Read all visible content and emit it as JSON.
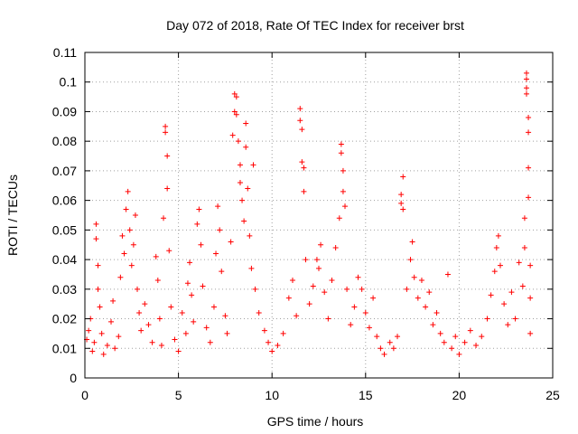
{
  "chart_data": {
    "type": "scatter",
    "title": "Day 072 of 2018, Rate Of TEC Index for receiver brst",
    "xlabel": "GPS time / hours",
    "ylabel": "ROTI / TECUs",
    "xlim": [
      0,
      25
    ],
    "ylim": [
      0,
      0.11
    ],
    "x_ticks": [
      "0",
      "5",
      "10",
      "15",
      "20",
      "25"
    ],
    "y_ticks": [
      "0",
      "0.01",
      "0.02",
      "0.03",
      "0.04",
      "0.05",
      "0.06",
      "0.07",
      "0.08",
      "0.09",
      "0.1",
      "0.11"
    ],
    "grid": true,
    "marker": "plus",
    "color": "#ff0000",
    "series": [
      {
        "points": [
          [
            0.1,
            0.013
          ],
          [
            0.2,
            0.016
          ],
          [
            0.3,
            0.02
          ],
          [
            0.4,
            0.009
          ],
          [
            0.5,
            0.012
          ],
          [
            0.6,
            0.047
          ],
          [
            0.6,
            0.052
          ],
          [
            0.7,
            0.038
          ],
          [
            0.7,
            0.03
          ],
          [
            0.8,
            0.024
          ],
          [
            0.9,
            0.015
          ],
          [
            1.0,
            0.008
          ],
          [
            1.2,
            0.011
          ],
          [
            1.4,
            0.019
          ],
          [
            1.5,
            0.026
          ],
          [
            1.6,
            0.01
          ],
          [
            1.8,
            0.014
          ],
          [
            1.9,
            0.034
          ],
          [
            2.0,
            0.048
          ],
          [
            2.1,
            0.042
          ],
          [
            2.2,
            0.057
          ],
          [
            2.3,
            0.063
          ],
          [
            2.4,
            0.05
          ],
          [
            2.5,
            0.038
          ],
          [
            2.6,
            0.045
          ],
          [
            2.7,
            0.055
          ],
          [
            2.8,
            0.03
          ],
          [
            2.9,
            0.022
          ],
          [
            3.0,
            0.016
          ],
          [
            3.2,
            0.025
          ],
          [
            3.4,
            0.018
          ],
          [
            3.6,
            0.012
          ],
          [
            3.8,
            0.041
          ],
          [
            3.9,
            0.033
          ],
          [
            4.0,
            0.02
          ],
          [
            4.1,
            0.011
          ],
          [
            4.2,
            0.054
          ],
          [
            4.3,
            0.085
          ],
          [
            4.3,
            0.083
          ],
          [
            4.4,
            0.075
          ],
          [
            4.4,
            0.064
          ],
          [
            4.5,
            0.043
          ],
          [
            4.6,
            0.024
          ],
          [
            4.8,
            0.013
          ],
          [
            5.0,
            0.009
          ],
          [
            5.2,
            0.022
          ],
          [
            5.4,
            0.015
          ],
          [
            5.5,
            0.032
          ],
          [
            5.6,
            0.039
          ],
          [
            5.7,
            0.028
          ],
          [
            5.8,
            0.019
          ],
          [
            6.0,
            0.052
          ],
          [
            6.1,
            0.057
          ],
          [
            6.2,
            0.045
          ],
          [
            6.3,
            0.031
          ],
          [
            6.5,
            0.017
          ],
          [
            6.7,
            0.012
          ],
          [
            6.9,
            0.024
          ],
          [
            7.0,
            0.042
          ],
          [
            7.1,
            0.058
          ],
          [
            7.2,
            0.05
          ],
          [
            7.3,
            0.036
          ],
          [
            7.5,
            0.021
          ],
          [
            7.6,
            0.015
          ],
          [
            7.8,
            0.046
          ],
          [
            7.9,
            0.082
          ],
          [
            8.0,
            0.09
          ],
          [
            8.0,
            0.096
          ],
          [
            8.1,
            0.095
          ],
          [
            8.1,
            0.089
          ],
          [
            8.2,
            0.08
          ],
          [
            8.3,
            0.072
          ],
          [
            8.3,
            0.066
          ],
          [
            8.4,
            0.06
          ],
          [
            8.5,
            0.053
          ],
          [
            8.6,
            0.086
          ],
          [
            8.6,
            0.078
          ],
          [
            8.7,
            0.064
          ],
          [
            8.8,
            0.048
          ],
          [
            8.9,
            0.037
          ],
          [
            9.0,
            0.072
          ],
          [
            9.1,
            0.03
          ],
          [
            9.3,
            0.022
          ],
          [
            9.6,
            0.016
          ],
          [
            9.8,
            0.012
          ],
          [
            10.0,
            0.009
          ],
          [
            10.3,
            0.011
          ],
          [
            10.6,
            0.015
          ],
          [
            10.9,
            0.027
          ],
          [
            11.1,
            0.033
          ],
          [
            11.3,
            0.021
          ],
          [
            11.5,
            0.091
          ],
          [
            11.5,
            0.087
          ],
          [
            11.6,
            0.084
          ],
          [
            11.6,
            0.073
          ],
          [
            11.7,
            0.071
          ],
          [
            11.7,
            0.063
          ],
          [
            11.8,
            0.04
          ],
          [
            12.0,
            0.025
          ],
          [
            12.2,
            0.031
          ],
          [
            12.4,
            0.04
          ],
          [
            12.5,
            0.037
          ],
          [
            12.6,
            0.045
          ],
          [
            12.8,
            0.029
          ],
          [
            13.0,
            0.02
          ],
          [
            13.2,
            0.033
          ],
          [
            13.4,
            0.044
          ],
          [
            13.6,
            0.054
          ],
          [
            13.7,
            0.079
          ],
          [
            13.7,
            0.076
          ],
          [
            13.8,
            0.07
          ],
          [
            13.8,
            0.063
          ],
          [
            13.9,
            0.058
          ],
          [
            14.0,
            0.03
          ],
          [
            14.2,
            0.018
          ],
          [
            14.4,
            0.024
          ],
          [
            14.6,
            0.034
          ],
          [
            14.8,
            0.03
          ],
          [
            15.0,
            0.022
          ],
          [
            15.2,
            0.017
          ],
          [
            15.4,
            0.027
          ],
          [
            15.6,
            0.014
          ],
          [
            15.8,
            0.01
          ],
          [
            16.0,
            0.008
          ],
          [
            16.3,
            0.012
          ],
          [
            16.5,
            0.01
          ],
          [
            16.7,
            0.014
          ],
          [
            16.9,
            0.062
          ],
          [
            16.9,
            0.059
          ],
          [
            17.0,
            0.057
          ],
          [
            17.0,
            0.068
          ],
          [
            17.2,
            0.03
          ],
          [
            17.4,
            0.04
          ],
          [
            17.5,
            0.046
          ],
          [
            17.6,
            0.034
          ],
          [
            17.8,
            0.027
          ],
          [
            18.0,
            0.033
          ],
          [
            18.2,
            0.024
          ],
          [
            18.4,
            0.029
          ],
          [
            18.6,
            0.018
          ],
          [
            18.8,
            0.022
          ],
          [
            19.0,
            0.015
          ],
          [
            19.2,
            0.012
          ],
          [
            19.4,
            0.035
          ],
          [
            19.6,
            0.01
          ],
          [
            19.8,
            0.014
          ],
          [
            20.0,
            0.008
          ],
          [
            20.3,
            0.012
          ],
          [
            20.6,
            0.016
          ],
          [
            20.9,
            0.011
          ],
          [
            21.2,
            0.014
          ],
          [
            21.5,
            0.02
          ],
          [
            21.7,
            0.028
          ],
          [
            21.9,
            0.036
          ],
          [
            22.0,
            0.044
          ],
          [
            22.1,
            0.048
          ],
          [
            22.2,
            0.038
          ],
          [
            22.4,
            0.025
          ],
          [
            22.6,
            0.018
          ],
          [
            22.8,
            0.029
          ],
          [
            23.0,
            0.02
          ],
          [
            23.2,
            0.039
          ],
          [
            23.4,
            0.031
          ],
          [
            23.5,
            0.054
          ],
          [
            23.5,
            0.044
          ],
          [
            23.6,
            0.103
          ],
          [
            23.6,
            0.101
          ],
          [
            23.6,
            0.098
          ],
          [
            23.6,
            0.096
          ],
          [
            23.7,
            0.088
          ],
          [
            23.7,
            0.083
          ],
          [
            23.7,
            0.071
          ],
          [
            23.7,
            0.061
          ],
          [
            23.8,
            0.038
          ],
          [
            23.8,
            0.027
          ],
          [
            23.8,
            0.015
          ]
        ]
      }
    ]
  }
}
